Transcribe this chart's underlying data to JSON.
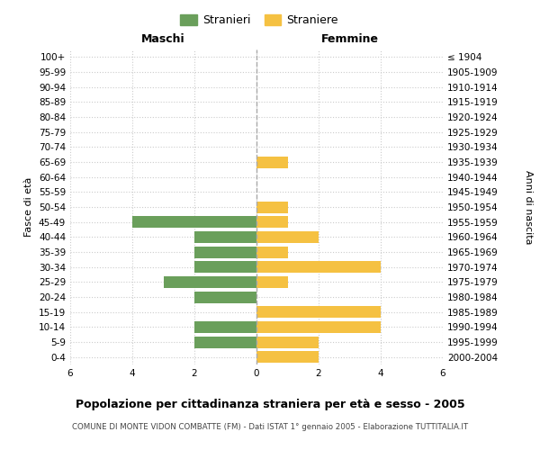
{
  "age_groups": [
    "100+",
    "95-99",
    "90-94",
    "85-89",
    "80-84",
    "75-79",
    "70-74",
    "65-69",
    "60-64",
    "55-59",
    "50-54",
    "45-49",
    "40-44",
    "35-39",
    "30-34",
    "25-29",
    "20-24",
    "15-19",
    "10-14",
    "5-9",
    "0-4"
  ],
  "birth_years": [
    "≤ 1904",
    "1905-1909",
    "1910-1914",
    "1915-1919",
    "1920-1924",
    "1925-1929",
    "1930-1934",
    "1935-1939",
    "1940-1944",
    "1945-1949",
    "1950-1954",
    "1955-1959",
    "1960-1964",
    "1965-1969",
    "1970-1974",
    "1975-1979",
    "1980-1984",
    "1985-1989",
    "1990-1994",
    "1995-1999",
    "2000-2004"
  ],
  "maschi": [
    0,
    0,
    0,
    0,
    0,
    0,
    0,
    0,
    0,
    0,
    0,
    4,
    2,
    2,
    2,
    3,
    2,
    0,
    2,
    2,
    0
  ],
  "femmine": [
    0,
    0,
    0,
    0,
    0,
    0,
    0,
    1,
    0,
    0,
    1,
    1,
    2,
    1,
    4,
    1,
    0,
    4,
    4,
    2,
    2
  ],
  "color_maschi": "#6a9f5b",
  "color_femmine": "#f5c142",
  "xlim": 6,
  "title": "Popolazione per cittadinanza straniera per età e sesso - 2005",
  "subtitle": "COMUNE DI MONTE VIDON COMBATTE (FM) - Dati ISTAT 1° gennaio 2005 - Elaborazione TUTTITALIA.IT",
  "label_maschi": "Maschi",
  "label_femmine": "Femmine",
  "ylabel_left": "Fasce di età",
  "ylabel_right": "Anni di nascita",
  "legend_maschi": "Stranieri",
  "legend_femmine": "Straniere",
  "bg_color": "#ffffff",
  "grid_color": "#cccccc",
  "bar_height": 0.78
}
